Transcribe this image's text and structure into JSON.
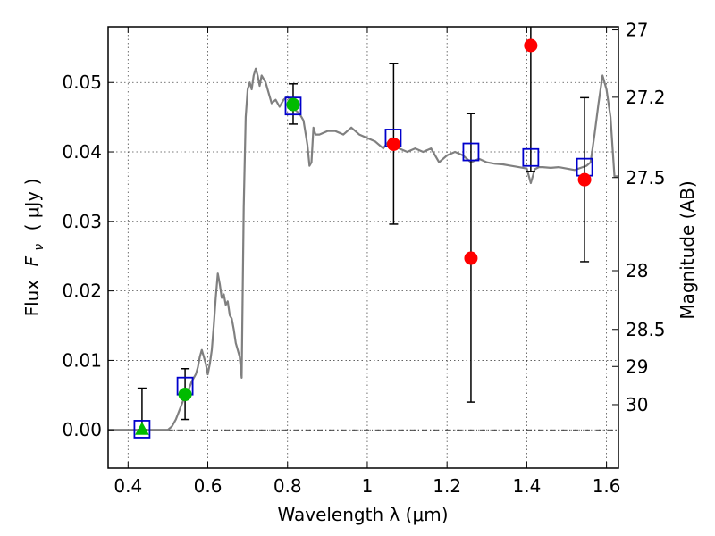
{
  "chart_data": {
    "type": "scatter",
    "xlabel": "Wavelength  λ (μm)",
    "ylabel_prefix": "Flux",
    "ylabel_symbol": "F",
    "ylabel_subscript": "ν",
    "ylabel_unit": "( μJy )",
    "y2label": "Magnitude (AB)",
    "xlim": [
      0.35,
      1.63
    ],
    "ylim": [
      -0.0055,
      0.058
    ],
    "x_ticks": [
      {
        "value": 0.4,
        "label": "0.4"
      },
      {
        "value": 0.6,
        "label": "0.6"
      },
      {
        "value": 0.8,
        "label": "0.8"
      },
      {
        "value": 1.0,
        "label": "1"
      },
      {
        "value": 1.2,
        "label": "1.2"
      },
      {
        "value": 1.4,
        "label": "1.4"
      },
      {
        "value": 1.6,
        "label": "1.6"
      }
    ],
    "y_ticks": [
      {
        "value": 0.0,
        "label": "0.00"
      },
      {
        "value": 0.01,
        "label": "0.01"
      },
      {
        "value": 0.02,
        "label": "0.02"
      },
      {
        "value": 0.03,
        "label": "0.03"
      },
      {
        "value": 0.04,
        "label": "0.04"
      },
      {
        "value": 0.05,
        "label": "0.05"
      }
    ],
    "y2_ticks": [
      {
        "value": 27.0,
        "label": "27"
      },
      {
        "value": 27.2,
        "label": "27.2"
      },
      {
        "value": 27.5,
        "label": "27.5"
      },
      {
        "value": 28.0,
        "label": "28"
      },
      {
        "value": 28.5,
        "label": "28.5"
      },
      {
        "value": 29.0,
        "label": "29"
      },
      {
        "value": 30.0,
        "label": "30"
      }
    ],
    "grid": true,
    "zero_line": true,
    "sed_model": {
      "color": "#808080",
      "x": [
        0.35,
        0.5,
        0.51,
        0.52,
        0.53,
        0.54,
        0.55,
        0.56,
        0.57,
        0.575,
        0.58,
        0.585,
        0.59,
        0.595,
        0.6,
        0.605,
        0.61,
        0.615,
        0.62,
        0.625,
        0.63,
        0.635,
        0.64,
        0.645,
        0.65,
        0.655,
        0.66,
        0.665,
        0.67,
        0.675,
        0.68,
        0.685,
        0.69,
        0.695,
        0.7,
        0.705,
        0.71,
        0.715,
        0.72,
        0.725,
        0.73,
        0.735,
        0.74,
        0.745,
        0.75,
        0.76,
        0.77,
        0.78,
        0.79,
        0.8,
        0.81,
        0.82,
        0.83,
        0.84,
        0.85,
        0.855,
        0.86,
        0.865,
        0.87,
        0.88,
        0.9,
        0.92,
        0.94,
        0.96,
        0.98,
        1.0,
        1.02,
        1.04,
        1.06,
        1.08,
        1.1,
        1.12,
        1.14,
        1.16,
        1.18,
        1.2,
        1.22,
        1.24,
        1.26,
        1.28,
        1.3,
        1.32,
        1.34,
        1.36,
        1.38,
        1.4,
        1.41,
        1.42,
        1.43,
        1.44,
        1.46,
        1.48,
        1.5,
        1.52,
        1.54,
        1.55,
        1.56,
        1.57,
        1.58,
        1.59,
        1.6,
        1.61,
        1.62,
        1.63
      ],
      "y": [
        0.0,
        0.0,
        0.0005,
        0.0015,
        0.003,
        0.0045,
        0.0055,
        0.007,
        0.008,
        0.009,
        0.0105,
        0.0115,
        0.0105,
        0.0095,
        0.008,
        0.0095,
        0.0115,
        0.015,
        0.019,
        0.0225,
        0.021,
        0.019,
        0.0195,
        0.018,
        0.0185,
        0.0165,
        0.016,
        0.0145,
        0.0125,
        0.0115,
        0.0105,
        0.0075,
        0.032,
        0.045,
        0.049,
        0.05,
        0.049,
        0.051,
        0.052,
        0.051,
        0.0495,
        0.051,
        0.0505,
        0.05,
        0.049,
        0.047,
        0.0475,
        0.0465,
        0.0475,
        0.048,
        0.047,
        0.046,
        0.0455,
        0.0445,
        0.041,
        0.038,
        0.0385,
        0.0435,
        0.0425,
        0.0425,
        0.043,
        0.043,
        0.0425,
        0.0435,
        0.0425,
        0.042,
        0.0415,
        0.0405,
        0.042,
        0.0405,
        0.04,
        0.0405,
        0.04,
        0.0405,
        0.0385,
        0.0395,
        0.04,
        0.0395,
        0.0385,
        0.039,
        0.0385,
        0.0383,
        0.0382,
        0.038,
        0.0378,
        0.0376,
        0.0355,
        0.0375,
        0.0378,
        0.0378,
        0.0377,
        0.0378,
        0.0376,
        0.0374,
        0.0378,
        0.038,
        0.0385,
        0.0425,
        0.047,
        0.051,
        0.049,
        0.045,
        0.0365,
        0.0365
      ]
    },
    "model_bands": {
      "marker": "square",
      "color": "#0000cc",
      "x": [
        0.435,
        0.543,
        0.814,
        1.065,
        1.26,
        1.41,
        1.545
      ],
      "y": [
        0.0001,
        0.0063,
        0.0466,
        0.042,
        0.04,
        0.0392,
        0.0378
      ]
    },
    "green_points": {
      "color": "#00bb00",
      "triangle": {
        "x": 0.435,
        "y": 0.0,
        "yerr_low": 0.0,
        "yerr_high": 0.006
      },
      "circles": [
        {
          "x": 0.543,
          "y": 0.0051,
          "yerr_low": 0.0015,
          "yerr_high": 0.0088
        },
        {
          "x": 0.814,
          "y": 0.0468,
          "yerr_low": 0.044,
          "yerr_high": 0.0498
        }
      ]
    },
    "red_points": {
      "color": "#ff0000",
      "circles": [
        {
          "x": 1.066,
          "y": 0.0411,
          "yerr_low": 0.0296,
          "yerr_high": 0.0527
        },
        {
          "x": 1.26,
          "y": 0.0247,
          "yerr_low": 0.004,
          "yerr_high": 0.0455
        },
        {
          "x": 1.41,
          "y": 0.0553,
          "yerr_low": 0.0372,
          "yerr_high": 0.06
        },
        {
          "x": 1.545,
          "y": 0.036,
          "yerr_low": 0.0242,
          "yerr_high": 0.0478
        }
      ]
    }
  }
}
